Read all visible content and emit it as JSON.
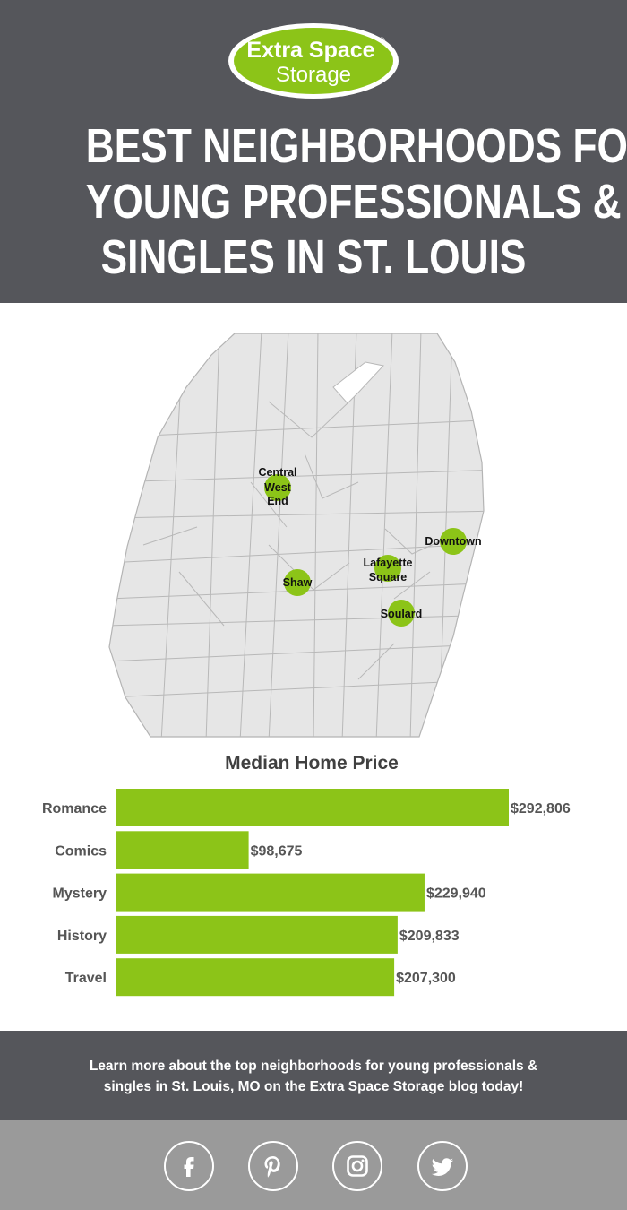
{
  "logo": {
    "line1": "Extra Space",
    "line2": "Storage",
    "reg": "®"
  },
  "title_lines": [
    "BEST NEIGHBORHOODS FOR",
    "YOUNG PROFESSIONALS &",
    "SINGLES IN ST. LOUIS"
  ],
  "map": {
    "markers": [
      {
        "label_lines": [
          "Central",
          "West",
          "End"
        ]
      },
      {
        "label_lines": [
          "Downtown"
        ]
      },
      {
        "label_lines": [
          "Lafayette",
          "Square"
        ]
      },
      {
        "label_lines": [
          "Shaw"
        ]
      },
      {
        "label_lines": [
          "Soulard"
        ]
      }
    ]
  },
  "chart_data": {
    "type": "bar",
    "orientation": "horizontal",
    "title": "Median Home Price",
    "categories": [
      "Romance",
      "Comics",
      "Mystery",
      "History",
      "Travel"
    ],
    "values": [
      292806,
      98675,
      229940,
      209833,
      207300
    ],
    "value_labels": [
      "$292,806",
      "$98,675",
      "$229,940",
      "$209,833",
      "$207,300"
    ],
    "xlim": [
      0,
      292806
    ],
    "grid": false,
    "legend": "none",
    "bar_color": "#8cc418"
  },
  "footer": {
    "cta_line1": "Learn more about the top neighborhoods for young professionals &",
    "cta_line2": "singles in St. Louis, MO on the Extra Space Storage blog today!"
  },
  "social": [
    {
      "icon": "facebook-icon"
    },
    {
      "icon": "pinterest-icon"
    },
    {
      "icon": "instagram-icon"
    },
    {
      "icon": "twitter-icon"
    }
  ],
  "colors": {
    "header_bg": "#55565b",
    "accent_green": "#8cc418",
    "map_fill": "#e6e6e6",
    "social_bg": "#9a9a9a"
  }
}
